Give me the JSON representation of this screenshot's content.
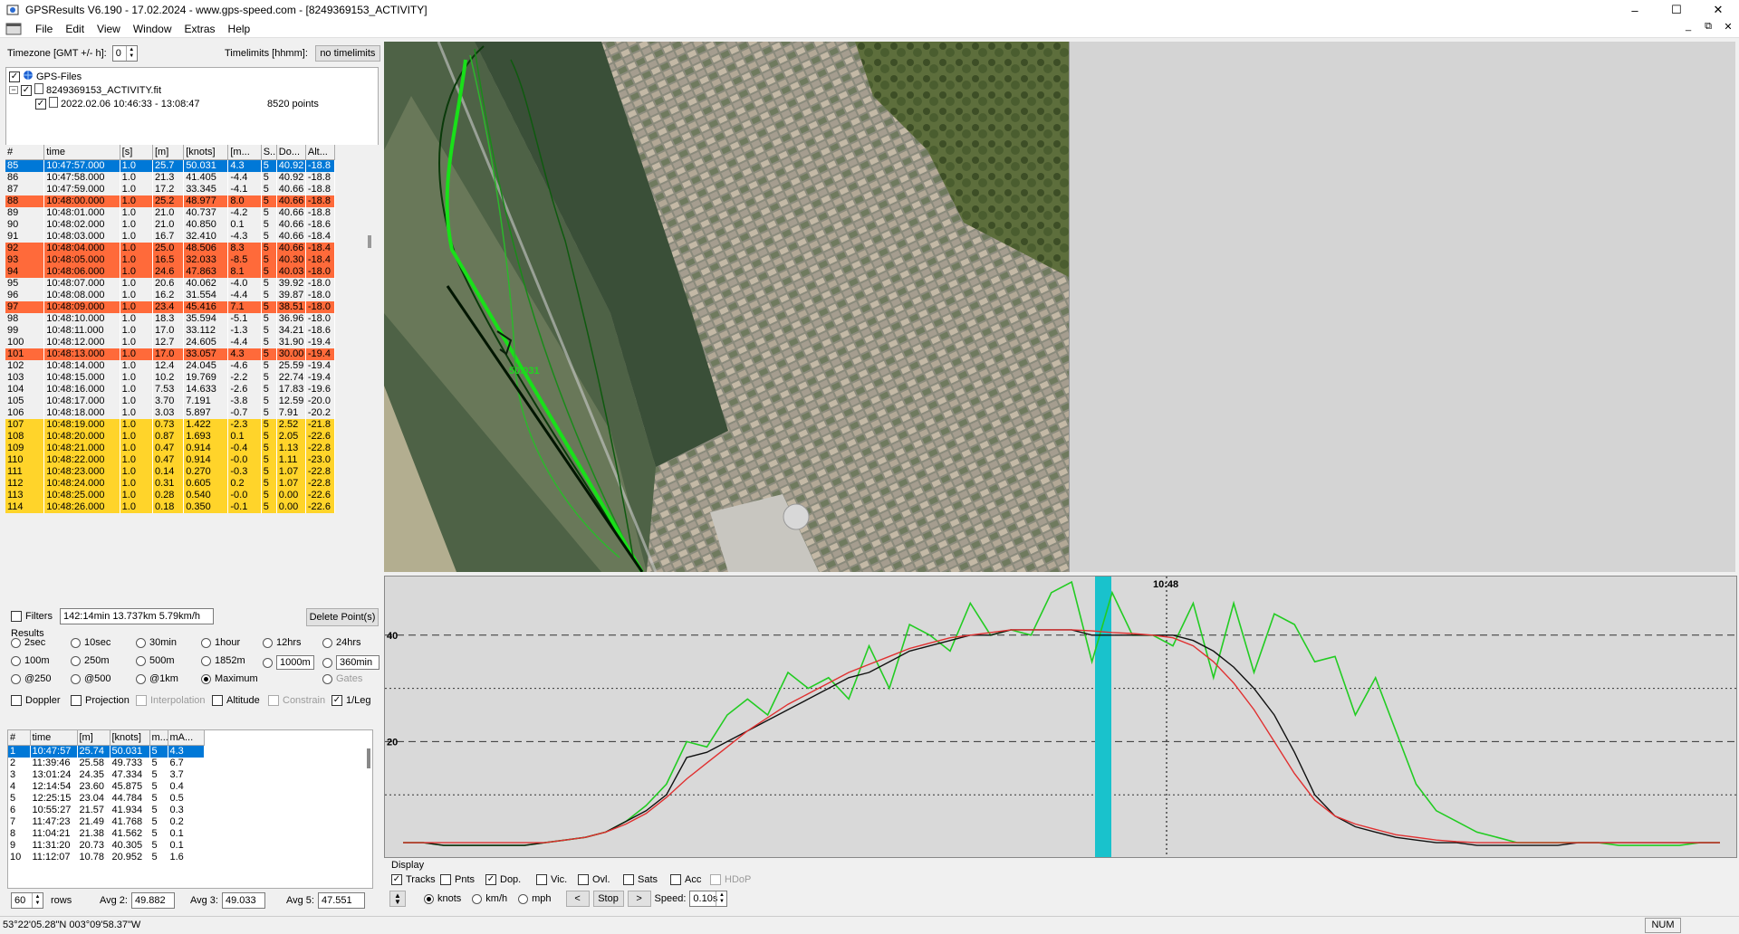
{
  "window": {
    "title": "GPSResults V6.190 - 17.02.2024 - www.gps-speed.com - [8249369153_ACTIVITY]",
    "controls": [
      "–",
      "☐",
      "✕"
    ]
  },
  "menu": [
    "File",
    "Edit",
    "View",
    "Window",
    "Extras",
    "Help"
  ],
  "mdi_controls": [
    "_",
    "⧉",
    "✕"
  ],
  "timezone": {
    "label": "Timezone [GMT +/- h]:",
    "value": "0"
  },
  "timelimits": {
    "label": "Timelimits [hhmm]:",
    "button": "no timelimits"
  },
  "tree": {
    "root": "GPS-Files",
    "file": "8249369153_ACTIVITY.fit",
    "track": "2022.02.06 10:46:33 - 13:08:47",
    "points": "8520 points"
  },
  "points_table": {
    "headers": [
      "#",
      "time",
      "[s]",
      "[m]",
      "[knots]",
      "[m...",
      "S...",
      "Do...",
      "Alt..."
    ],
    "rows": [
      {
        "c": [
          "85",
          "10:47:57.000",
          "1.0",
          "25.7",
          "50.031",
          "4.3",
          "5",
          "40.92",
          "-18.8"
        ],
        "hl": "sel"
      },
      {
        "c": [
          "86",
          "10:47:58.000",
          "1.0",
          "21.3",
          "41.405",
          "-4.4",
          "5",
          "40.92",
          "-18.8"
        ],
        "hl": ""
      },
      {
        "c": [
          "87",
          "10:47:59.000",
          "1.0",
          "17.2",
          "33.345",
          "-4.1",
          "5",
          "40.66",
          "-18.8"
        ],
        "hl": ""
      },
      {
        "c": [
          "88",
          "10:48:00.000",
          "1.0",
          "25.2",
          "48.977",
          "8.0",
          "5",
          "40.66",
          "-18.8"
        ],
        "hl": "orange"
      },
      {
        "c": [
          "89",
          "10:48:01.000",
          "1.0",
          "21.0",
          "40.737",
          "-4.2",
          "5",
          "40.66",
          "-18.8"
        ],
        "hl": ""
      },
      {
        "c": [
          "90",
          "10:48:02.000",
          "1.0",
          "21.0",
          "40.850",
          "0.1",
          "5",
          "40.66",
          "-18.6"
        ],
        "hl": ""
      },
      {
        "c": [
          "91",
          "10:48:03.000",
          "1.0",
          "16.7",
          "32.410",
          "-4.3",
          "5",
          "40.66",
          "-18.4"
        ],
        "hl": ""
      },
      {
        "c": [
          "92",
          "10:48:04.000",
          "1.0",
          "25.0",
          "48.506",
          "8.3",
          "5",
          "40.66",
          "-18.4"
        ],
        "hl": "orange"
      },
      {
        "c": [
          "93",
          "10:48:05.000",
          "1.0",
          "16.5",
          "32.033",
          "-8.5",
          "5",
          "40.30",
          "-18.4"
        ],
        "hl": "orange"
      },
      {
        "c": [
          "94",
          "10:48:06.000",
          "1.0",
          "24.6",
          "47.863",
          "8.1",
          "5",
          "40.03",
          "-18.0"
        ],
        "hl": "orange"
      },
      {
        "c": [
          "95",
          "10:48:07.000",
          "1.0",
          "20.6",
          "40.062",
          "-4.0",
          "5",
          "39.92",
          "-18.0"
        ],
        "hl": ""
      },
      {
        "c": [
          "96",
          "10:48:08.000",
          "1.0",
          "16.2",
          "31.554",
          "-4.4",
          "5",
          "39.87",
          "-18.0"
        ],
        "hl": ""
      },
      {
        "c": [
          "97",
          "10:48:09.000",
          "1.0",
          "23.4",
          "45.416",
          "7.1",
          "5",
          "38.51",
          "-18.0"
        ],
        "hl": "orange"
      },
      {
        "c": [
          "98",
          "10:48:10.000",
          "1.0",
          "18.3",
          "35.594",
          "-5.1",
          "5",
          "36.96",
          "-18.0"
        ],
        "hl": ""
      },
      {
        "c": [
          "99",
          "10:48:11.000",
          "1.0",
          "17.0",
          "33.112",
          "-1.3",
          "5",
          "34.21",
          "-18.6"
        ],
        "hl": ""
      },
      {
        "c": [
          "100",
          "10:48:12.000",
          "1.0",
          "12.7",
          "24.605",
          "-4.4",
          "5",
          "31.90",
          "-19.4"
        ],
        "hl": ""
      },
      {
        "c": [
          "101",
          "10:48:13.000",
          "1.0",
          "17.0",
          "33.057",
          "4.3",
          "5",
          "30.00",
          "-19.4"
        ],
        "hl": "orange"
      },
      {
        "c": [
          "102",
          "10:48:14.000",
          "1.0",
          "12.4",
          "24.045",
          "-4.6",
          "5",
          "25.59",
          "-19.4"
        ],
        "hl": ""
      },
      {
        "c": [
          "103",
          "10:48:15.000",
          "1.0",
          "10.2",
          "19.769",
          "-2.2",
          "5",
          "22.74",
          "-19.4"
        ],
        "hl": ""
      },
      {
        "c": [
          "104",
          "10:48:16.000",
          "1.0",
          "7.53",
          "14.633",
          "-2.6",
          "5",
          "17.83",
          "-19.6"
        ],
        "hl": ""
      },
      {
        "c": [
          "105",
          "10:48:17.000",
          "1.0",
          "3.70",
          "7.191",
          "-3.8",
          "5",
          "12.59",
          "-20.0"
        ],
        "hl": ""
      },
      {
        "c": [
          "106",
          "10:48:18.000",
          "1.0",
          "3.03",
          "5.897",
          "-0.7",
          "5",
          "7.91",
          "-20.2"
        ],
        "hl": ""
      },
      {
        "c": [
          "107",
          "10:48:19.000",
          "1.0",
          "0.73",
          "1.422",
          "-2.3",
          "5",
          "2.52",
          "-21.8"
        ],
        "hl": "yellow"
      },
      {
        "c": [
          "108",
          "10:48:20.000",
          "1.0",
          "0.87",
          "1.693",
          "0.1",
          "5",
          "2.05",
          "-22.6"
        ],
        "hl": "yellow"
      },
      {
        "c": [
          "109",
          "10:48:21.000",
          "1.0",
          "0.47",
          "0.914",
          "-0.4",
          "5",
          "1.13",
          "-22.8"
        ],
        "hl": "yellow"
      },
      {
        "c": [
          "110",
          "10:48:22.000",
          "1.0",
          "0.47",
          "0.914",
          "-0.0",
          "5",
          "1.11",
          "-23.0"
        ],
        "hl": "yellow"
      },
      {
        "c": [
          "111",
          "10:48:23.000",
          "1.0",
          "0.14",
          "0.270",
          "-0.3",
          "5",
          "1.07",
          "-22.8"
        ],
        "hl": "yellow"
      },
      {
        "c": [
          "112",
          "10:48:24.000",
          "1.0",
          "0.31",
          "0.605",
          "0.2",
          "5",
          "1.07",
          "-22.8"
        ],
        "hl": "yellow"
      },
      {
        "c": [
          "113",
          "10:48:25.000",
          "1.0",
          "0.28",
          "0.540",
          "-0.0",
          "5",
          "0.00",
          "-22.6"
        ],
        "hl": "yellow"
      },
      {
        "c": [
          "114",
          "10:48:26.000",
          "1.0",
          "0.18",
          "0.350",
          "-0.1",
          "5",
          "0.00",
          "-22.6"
        ],
        "hl": "yellow"
      }
    ]
  },
  "filters": {
    "label": "Filters",
    "value": "142:14min 13.737km 5.79km/h",
    "delete_button": "Delete Point(s)"
  },
  "results": {
    "label": "Results",
    "options": [
      {
        "label": "2sec",
        "on": false
      },
      {
        "label": "10sec",
        "on": false
      },
      {
        "label": "30min",
        "on": false
      },
      {
        "label": "1hour",
        "on": false
      },
      {
        "label": "12hrs",
        "on": false
      },
      {
        "label": "24hrs",
        "on": false
      },
      {
        "label": "100m",
        "on": false
      },
      {
        "label": "250m",
        "on": false
      },
      {
        "label": "500m",
        "on": false
      },
      {
        "label": "1852m",
        "on": false
      },
      {
        "label": "1000m",
        "on": false
      },
      {
        "label": "360min",
        "on": false
      },
      {
        "label": "@250",
        "on": false
      },
      {
        "label": "@500",
        "on": false
      },
      {
        "label": "@1km",
        "on": false
      },
      {
        "label": "Maximum",
        "on": true
      },
      {
        "label": "Gates",
        "on": false
      }
    ],
    "checks": [
      {
        "label": "Doppler",
        "on": false,
        "grey": false
      },
      {
        "label": "Projection",
        "on": false,
        "grey": false
      },
      {
        "label": "Interpolation",
        "on": false,
        "grey": true
      },
      {
        "label": "Altitude",
        "on": false,
        "grey": false
      },
      {
        "label": "Constrain",
        "on": false,
        "grey": true
      },
      {
        "label": "1/Leg",
        "on": true,
        "grey": false
      }
    ]
  },
  "results_table": {
    "headers": [
      "#",
      "time",
      "[m]",
      "[knots]",
      "m...",
      "mA..."
    ],
    "rows": [
      {
        "c": [
          "1",
          "10:47:57",
          "25.74",
          "50.031",
          "5",
          "4.3"
        ],
        "hl": "sel"
      },
      {
        "c": [
          "2",
          "11:39:46",
          "25.58",
          "49.733",
          "5",
          "6.7"
        ],
        "hl": ""
      },
      {
        "c": [
          "3",
          "13:01:24",
          "24.35",
          "47.334",
          "5",
          "3.7"
        ],
        "hl": ""
      },
      {
        "c": [
          "4",
          "12:14:54",
          "23.60",
          "45.875",
          "5",
          "0.4"
        ],
        "hl": ""
      },
      {
        "c": [
          "5",
          "12:25:15",
          "23.04",
          "44.784",
          "5",
          "0.5"
        ],
        "hl": ""
      },
      {
        "c": [
          "6",
          "10:55:27",
          "21.57",
          "41.934",
          "5",
          "0.3"
        ],
        "hl": ""
      },
      {
        "c": [
          "7",
          "11:47:23",
          "21.49",
          "41.768",
          "5",
          "0.2"
        ],
        "hl": ""
      },
      {
        "c": [
          "8",
          "11:04:21",
          "21.38",
          "41.562",
          "5",
          "0.1"
        ],
        "hl": ""
      },
      {
        "c": [
          "9",
          "11:31:20",
          "20.73",
          "40.305",
          "5",
          "0.1"
        ],
        "hl": ""
      },
      {
        "c": [
          "10",
          "11:12:07",
          "10.78",
          "20.952",
          "5",
          "1.6"
        ],
        "hl": ""
      }
    ]
  },
  "footer_left": {
    "rows_value": "60",
    "rows_label": "rows",
    "avg2_label": "Avg 2:",
    "avg2": "49.882",
    "avg3_label": "Avg 3:",
    "avg3": "49.033",
    "avg5_label": "Avg 5:",
    "avg5": "47.551"
  },
  "map": {
    "speed_label": "50.031"
  },
  "graph": {
    "time_label": "10:48",
    "y_labels": [
      "40",
      "20"
    ]
  },
  "chart_data": {
    "type": "line",
    "ylim": [
      0,
      50
    ],
    "y_ticks": [
      20,
      40
    ],
    "series": [
      {
        "color": "#22cc22",
        "values": [
          1,
          1,
          0.5,
          0.5,
          0.5,
          0.5,
          0.5,
          1,
          1.5,
          2,
          3,
          5,
          8,
          12,
          20,
          19,
          25,
          28,
          25,
          33,
          30,
          32,
          28,
          38,
          30,
          42,
          40,
          37,
          46,
          40,
          41,
          40,
          48,
          50,
          35,
          48,
          40,
          40,
          38,
          46,
          32,
          46,
          33,
          44,
          42,
          35,
          36,
          25,
          32,
          22,
          12,
          7,
          5,
          3,
          2,
          1,
          1,
          1,
          1,
          1,
          0.5,
          0.5,
          0.5,
          0.5,
          1,
          1
        ]
      },
      {
        "color": "#111111",
        "values": [
          1,
          1,
          0.5,
          0.5,
          0.5,
          0.5,
          0.5,
          1,
          1.5,
          2,
          3,
          5,
          7,
          10,
          17,
          18,
          20,
          22,
          24,
          26,
          28,
          30,
          32,
          33,
          35,
          37,
          38,
          39,
          40,
          40,
          41,
          41,
          41,
          41,
          40,
          40,
          40,
          40,
          40,
          39,
          37,
          34,
          30,
          25,
          18,
          10,
          6,
          4,
          3,
          2,
          1.5,
          1,
          1,
          0.5,
          0.5,
          0.5,
          0.5,
          0.5,
          1,
          1,
          1,
          1,
          1,
          1,
          1,
          1
        ]
      },
      {
        "color": "#e03030",
        "values": [
          1,
          1,
          1,
          1,
          1,
          1,
          1,
          1,
          1.5,
          2,
          3,
          4.5,
          6.5,
          9.5,
          13,
          16,
          19,
          22,
          24.5,
          27,
          29,
          31,
          33,
          34.5,
          36,
          37.5,
          38.5,
          39.5,
          40,
          40.5,
          41,
          41,
          41,
          41,
          40.8,
          40.5,
          40.3,
          40,
          39.5,
          38,
          35,
          31,
          26,
          20,
          14,
          9,
          6,
          4.5,
          3.5,
          2.5,
          2,
          1.5,
          1.2,
          1,
          1,
          1,
          1,
          1,
          1,
          1,
          1,
          1,
          1,
          1,
          1,
          1
        ]
      }
    ],
    "cursor_label": "10:48"
  },
  "display": {
    "label": "Display",
    "checks": [
      {
        "label": "Tracks",
        "on": true,
        "grey": false
      },
      {
        "label": "Pnts",
        "on": false,
        "grey": false
      },
      {
        "label": "Dop.",
        "on": true,
        "grey": false
      },
      {
        "label": "Vic.",
        "on": false,
        "grey": false
      },
      {
        "label": "Ovl.",
        "on": false,
        "grey": false
      },
      {
        "label": "Sats",
        "on": false,
        "grey": false
      },
      {
        "label": "Acc",
        "on": false,
        "grey": false
      },
      {
        "label": "HDoP",
        "on": false,
        "grey": true
      }
    ],
    "units": [
      {
        "label": "knots",
        "on": true
      },
      {
        "label": "km/h",
        "on": false
      },
      {
        "label": "mph",
        "on": false
      }
    ],
    "prev": "<",
    "stop": "Stop",
    "next": ">",
    "speed_label": "Speed:",
    "speed_value": "0.10s"
  },
  "status": {
    "coords": "53°22'05.28\"N 003°09'58.37\"W",
    "num": "NUM"
  },
  "colors": {
    "selection": "#0078d7",
    "orange": "#ff6a3a",
    "yellow": "#ffd42a",
    "cursor": "#19c2cc"
  }
}
